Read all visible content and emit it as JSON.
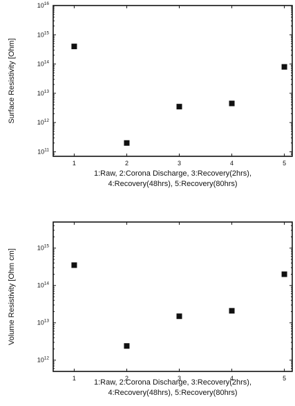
{
  "chart_data": [
    {
      "type": "scatter",
      "ylabel": "Surface Resistivity [Ohm]",
      "xlabel_lines": [
        "1:Raw, 2:Corona Discharge, 3:Recovery(2hrs),",
        "4:Recovery(48hrs), 5:Recovery(80hrs)"
      ],
      "x": [
        1,
        2,
        3,
        4,
        5
      ],
      "y": [
        400000000000000.0,
        200000000000.0,
        3500000000000.0,
        4500000000000.0,
        80000000000000.0
      ],
      "xlim": [
        0.6,
        5.15
      ],
      "ylim": [
        70000000000.0,
        1e+16
      ],
      "yscale": "log",
      "xticks": [
        1,
        2,
        3,
        4,
        5
      ],
      "xtick_labels": [
        "1",
        "2",
        "3",
        "4",
        "5"
      ],
      "yticks": [
        100000000000.0,
        1000000000000.0,
        10000000000000.0,
        100000000000000.0,
        1000000000000000.0,
        1e+16
      ],
      "ytick_labels": [
        {
          "base": "10",
          "exp": "11"
        },
        {
          "base": "10",
          "exp": "12"
        },
        {
          "base": "10",
          "exp": "13"
        },
        {
          "base": "10",
          "exp": "14"
        },
        {
          "base": "10",
          "exp": "15"
        },
        {
          "base": "10",
          "exp": "16"
        }
      ],
      "grid": false
    },
    {
      "type": "scatter",
      "ylabel": "Volume Resistivity [Ohm cm]",
      "xlabel_lines": [
        "1:Raw, 2:Corona Discharge, 3:Recovery(2hrs),",
        "4:Recovery(48hrs), 5:Recovery(80hrs)"
      ],
      "x": [
        1,
        2,
        3,
        4,
        5
      ],
      "y": [
        350000000000000.0,
        2400000000000.0,
        15000000000000.0,
        21000000000000.0,
        200000000000000.0
      ],
      "xlim": [
        0.6,
        5.15
      ],
      "ylim": [
        500000000000.0,
        5000000000000000.0
      ],
      "yscale": "log",
      "xticks": [
        1,
        2,
        3,
        4,
        5
      ],
      "xtick_labels": [
        "1",
        "2",
        "3",
        "4",
        "5"
      ],
      "yticks": [
        1000000000000.0,
        10000000000000.0,
        100000000000000.0,
        1000000000000000.0
      ],
      "ytick_labels": [
        {
          "base": "10",
          "exp": "12"
        },
        {
          "base": "10",
          "exp": "13"
        },
        {
          "base": "10",
          "exp": "14"
        },
        {
          "base": "10",
          "exp": "15"
        }
      ],
      "grid": false
    }
  ]
}
